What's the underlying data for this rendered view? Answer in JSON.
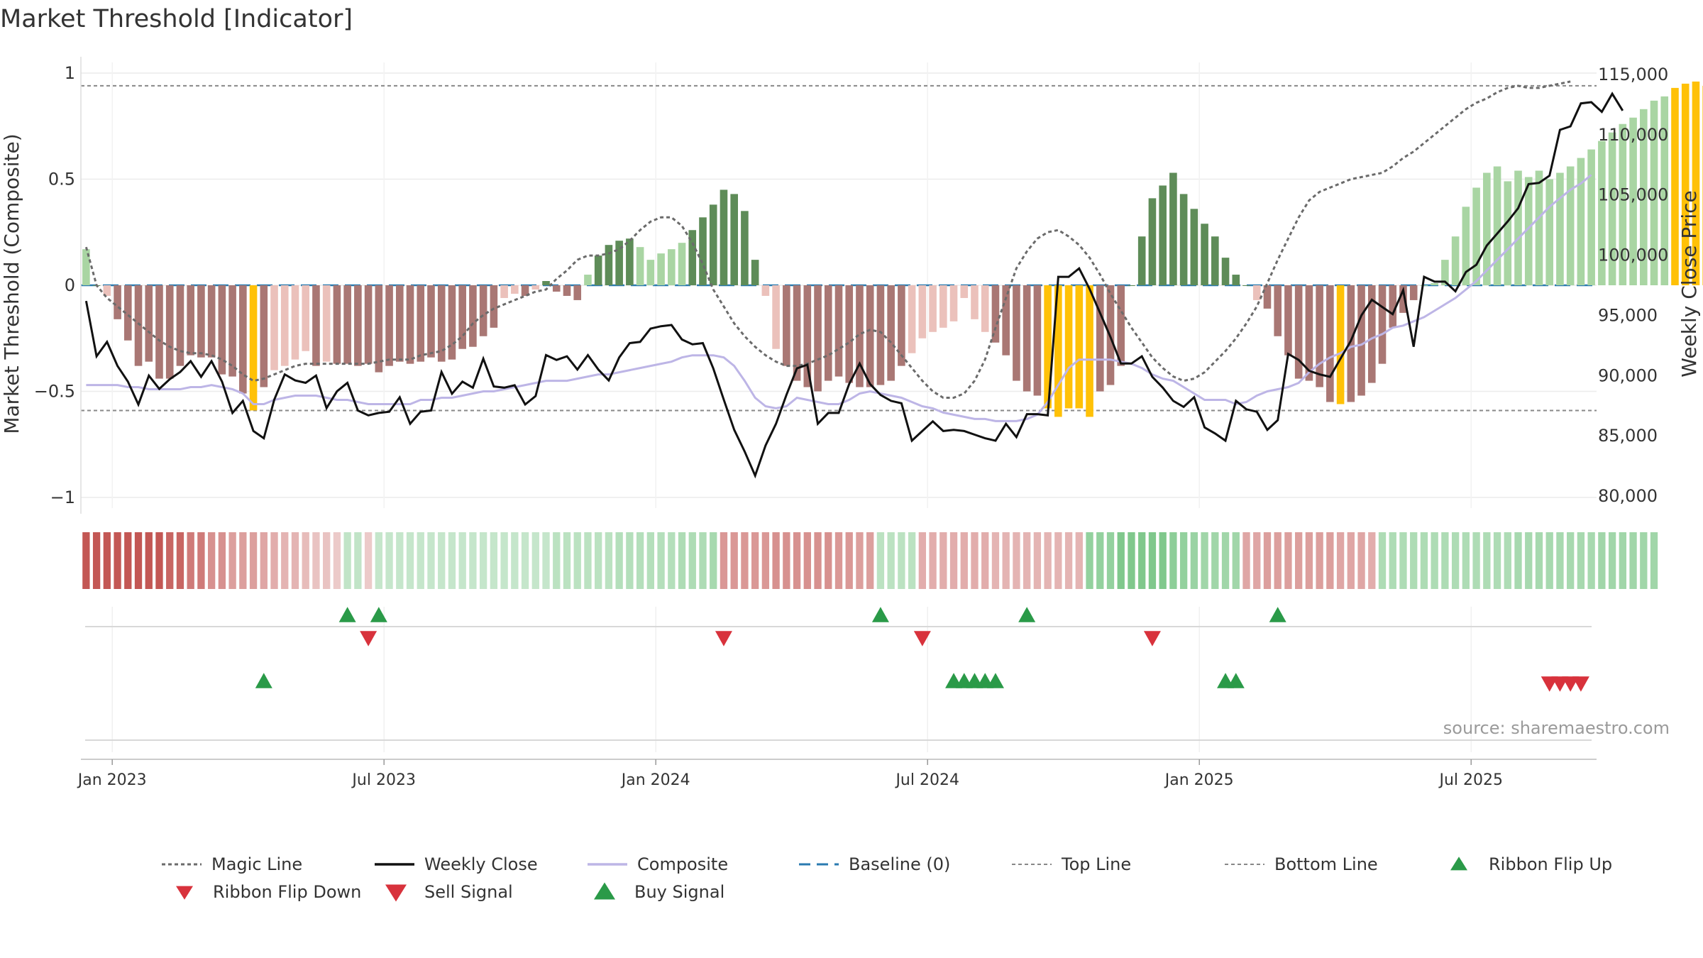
{
  "chart_data": {
    "type": "bar",
    "title": "Market Threshold [Indicator]",
    "ylabel_left": "Market Threshold (Composite)",
    "ylabel_right": "Weekly Close Price",
    "ylim_left": [
      -1.05,
      1.05
    ],
    "ylim_right": [
      79000,
      116000
    ],
    "left_ticks": [
      {
        "value": 1,
        "label": "1"
      },
      {
        "value": 0.5,
        "label": "0.5"
      },
      {
        "value": 0,
        "label": "0"
      },
      {
        "value": -0.5,
        "label": "−0.5"
      },
      {
        "value": -1,
        "label": "−1"
      }
    ],
    "right_ticks": [
      {
        "value": 115000,
        "label": "115,000"
      },
      {
        "value": 110000,
        "label": "110,000"
      },
      {
        "value": 105000,
        "label": "105,000"
      },
      {
        "value": 100000,
        "label": "100,000"
      },
      {
        "value": 95000,
        "label": "95,000"
      },
      {
        "value": 90000,
        "label": "90,000"
      },
      {
        "value": 85000,
        "label": "85,000"
      },
      {
        "value": 80000,
        "label": "80,000"
      }
    ],
    "x_ticks": [
      {
        "week": 2.5,
        "label": "Jan 2023"
      },
      {
        "week": 28.5,
        "label": "Jul 2023"
      },
      {
        "week": 54.5,
        "label": "Jan 2024"
      },
      {
        "week": 80.5,
        "label": "Jul 2024"
      },
      {
        "week": 106.5,
        "label": "Jan 2025"
      },
      {
        "week": 132.5,
        "label": "Jul 2025"
      }
    ],
    "weeks": 145,
    "top_line": 0.94,
    "bottom_line": -0.59,
    "composite_bars": [
      0.17,
      0.0,
      -0.05,
      -0.16,
      -0.26,
      -0.38,
      -0.36,
      -0.44,
      -0.44,
      -0.38,
      -0.33,
      -0.34,
      -0.34,
      -0.42,
      -0.43,
      -0.51,
      -0.59,
      -0.48,
      -0.4,
      -0.38,
      -0.35,
      -0.31,
      -0.38,
      -0.36,
      -0.37,
      -0.37,
      -0.38,
      -0.37,
      -0.41,
      -0.38,
      -0.36,
      -0.37,
      -0.36,
      -0.34,
      -0.36,
      -0.35,
      -0.3,
      -0.29,
      -0.24,
      -0.2,
      -0.06,
      -0.04,
      -0.05,
      -0.02,
      0.02,
      -0.03,
      -0.05,
      -0.07,
      0.05,
      0.14,
      0.19,
      0.21,
      0.22,
      0.18,
      0.12,
      0.15,
      0.17,
      0.2,
      0.26,
      0.32,
      0.38,
      0.45,
      0.43,
      0.35,
      0.12,
      -0.05,
      -0.3,
      -0.38,
      -0.45,
      -0.48,
      -0.5,
      -0.45,
      -0.43,
      -0.46,
      -0.48,
      -0.48,
      -0.47,
      -0.45,
      -0.38,
      -0.32,
      -0.25,
      -0.22,
      -0.2,
      -0.17,
      -0.06,
      -0.16,
      -0.22,
      -0.27,
      -0.33,
      -0.45,
      -0.5,
      -0.52,
      -0.58,
      -0.62,
      -0.58,
      -0.58,
      -0.62,
      -0.5,
      -0.47,
      -0.38,
      0.0,
      0.23,
      0.41,
      0.47,
      0.53,
      0.43,
      0.36,
      0.29,
      0.23,
      0.13,
      0.05,
      0.0,
      -0.07,
      -0.11,
      -0.24,
      -0.33,
      -0.44,
      -0.45,
      -0.48,
      -0.55,
      -0.56,
      -0.55,
      -0.52,
      -0.46,
      -0.37,
      -0.2,
      -0.13,
      -0.07,
      0.0,
      0.01,
      0.12,
      0.23,
      0.37,
      0.46,
      0.53,
      0.56,
      0.49,
      0.54,
      0.51,
      0.54,
      0.5,
      0.53,
      0.56,
      0.6,
      0.64,
      0.68,
      0.72,
      0.76,
      0.79,
      0.83,
      0.87,
      0.89,
      0.93,
      0.95,
      0.96,
      0.94,
      0.89
    ],
    "magic_line": [
      0.18,
      0.0,
      -0.06,
      -0.1,
      -0.14,
      -0.18,
      -0.22,
      -0.26,
      -0.29,
      -0.31,
      -0.32,
      -0.32,
      -0.33,
      -0.35,
      -0.38,
      -0.42,
      -0.45,
      -0.44,
      -0.42,
      -0.4,
      -0.38,
      -0.37,
      -0.37,
      -0.37,
      -0.37,
      -0.37,
      -0.37,
      -0.37,
      -0.36,
      -0.35,
      -0.35,
      -0.35,
      -0.33,
      -0.32,
      -0.31,
      -0.28,
      -0.24,
      -0.18,
      -0.14,
      -0.11,
      -0.09,
      -0.07,
      -0.05,
      -0.03,
      -0.02,
      0.03,
      0.07,
      0.12,
      0.14,
      0.14,
      0.15,
      0.17,
      0.21,
      0.26,
      0.3,
      0.32,
      0.32,
      0.28,
      0.2,
      0.1,
      -0.02,
      -0.1,
      -0.18,
      -0.24,
      -0.29,
      -0.33,
      -0.36,
      -0.38,
      -0.38,
      -0.37,
      -0.35,
      -0.33,
      -0.3,
      -0.27,
      -0.23,
      -0.21,
      -0.22,
      -0.27,
      -0.33,
      -0.39,
      -0.45,
      -0.5,
      -0.53,
      -0.53,
      -0.51,
      -0.45,
      -0.35,
      -0.2,
      -0.06,
      0.08,
      0.16,
      0.22,
      0.25,
      0.26,
      0.23,
      0.19,
      0.13,
      0.05,
      -0.04,
      -0.12,
      -0.2,
      -0.27,
      -0.34,
      -0.39,
      -0.43,
      -0.45,
      -0.44,
      -0.41,
      -0.36,
      -0.31,
      -0.25,
      -0.18,
      -0.1,
      0.01,
      0.12,
      0.22,
      0.32,
      0.4,
      0.44,
      0.46,
      0.48,
      0.5,
      0.51,
      0.52,
      0.53,
      0.56,
      0.6,
      0.63,
      0.67,
      0.71,
      0.75,
      0.79,
      0.83,
      0.86,
      0.88,
      0.91,
      0.93,
      0.94,
      0.93,
      0.93,
      0.94,
      0.95,
      0.96
    ],
    "composite_line": [
      -0.47,
      -0.47,
      -0.47,
      -0.47,
      -0.48,
      -0.48,
      -0.49,
      -0.49,
      -0.49,
      -0.49,
      -0.48,
      -0.48,
      -0.47,
      -0.48,
      -0.49,
      -0.51,
      -0.56,
      -0.56,
      -0.54,
      -0.53,
      -0.52,
      -0.52,
      -0.52,
      -0.53,
      -0.54,
      -0.54,
      -0.55,
      -0.56,
      -0.56,
      -0.56,
      -0.56,
      -0.56,
      -0.54,
      -0.54,
      -0.53,
      -0.53,
      -0.52,
      -0.51,
      -0.5,
      -0.5,
      -0.49,
      -0.48,
      -0.47,
      -0.46,
      -0.45,
      -0.45,
      -0.45,
      -0.44,
      -0.43,
      -0.42,
      -0.42,
      -0.41,
      -0.4,
      -0.39,
      -0.38,
      -0.37,
      -0.36,
      -0.34,
      -0.33,
      -0.33,
      -0.33,
      -0.34,
      -0.38,
      -0.45,
      -0.53,
      -0.57,
      -0.58,
      -0.57,
      -0.53,
      -0.54,
      -0.55,
      -0.56,
      -0.56,
      -0.54,
      -0.51,
      -0.5,
      -0.51,
      -0.52,
      -0.53,
      -0.55,
      -0.57,
      -0.58,
      -0.6,
      -0.61,
      -0.62,
      -0.63,
      -0.63,
      -0.64,
      -0.64,
      -0.64,
      -0.63,
      -0.61,
      -0.55,
      -0.47,
      -0.39,
      -0.35,
      -0.35,
      -0.35,
      -0.35,
      -0.36,
      -0.37,
      -0.39,
      -0.42,
      -0.44,
      -0.45,
      -0.48,
      -0.51,
      -0.54,
      -0.54,
      -0.54,
      -0.56,
      -0.55,
      -0.52,
      -0.5,
      -0.49,
      -0.48,
      -0.46,
      -0.41,
      -0.37,
      -0.34,
      -0.32,
      -0.29,
      -0.28,
      -0.25,
      -0.23,
      -0.2,
      -0.19,
      -0.17,
      -0.15,
      -0.12,
      -0.09,
      -0.06,
      -0.02,
      0.02,
      0.07,
      0.12,
      0.17,
      0.22,
      0.27,
      0.32,
      0.37,
      0.41,
      0.45,
      0.48,
      0.52
    ],
    "weekly_close": [
      96200,
      91600,
      92800,
      90800,
      89500,
      87600,
      90000,
      88900,
      89700,
      90300,
      91200,
      89900,
      91200,
      89500,
      86900,
      87900,
      85400,
      84800,
      88000,
      90100,
      89600,
      89400,
      90000,
      87300,
      88700,
      89400,
      87100,
      86700,
      86900,
      87000,
      88200,
      86000,
      87000,
      87100,
      90300,
      88500,
      89500,
      89000,
      91400,
      89100,
      89000,
      89200,
      87600,
      88300,
      91700,
      91300,
      91600,
      90500,
      91700,
      90500,
      89600,
      91500,
      92700,
      92800,
      93900,
      94100,
      94200,
      93000,
      92600,
      92700,
      90600,
      88000,
      85500,
      83700,
      81700,
      84200,
      86000,
      88400,
      90600,
      90900,
      86000,
      86900,
      86900,
      89300,
      91000,
      89300,
      88400,
      87900,
      87700,
      84600,
      85400,
      86200,
      85400,
      85500,
      85400,
      85100,
      84800,
      84600,
      86000,
      84900,
      86800,
      86800,
      86700,
      98200,
      98200,
      98900,
      97200,
      95200,
      93200,
      91000,
      91000,
      91600,
      89900,
      89000,
      87900,
      87400,
      88200,
      85700,
      85200,
      84600,
      87900,
      87200,
      87000,
      85500,
      86300,
      91800,
      91300,
      90400,
      90100,
      89900,
      91400,
      92900,
      95000,
      96300,
      95700,
      95100,
      97100,
      92400,
      98200,
      97800,
      97800,
      97000,
      98600,
      99200,
      100800,
      101800,
      102800,
      103900,
      105900,
      106000,
      106600,
      110400,
      110700,
      112600,
      112700,
      111900,
      113400,
      112000
    ],
    "ribbon": [
      -0.95,
      -0.95,
      -0.95,
      -0.95,
      -0.95,
      -0.95,
      -0.95,
      -0.95,
      -0.85,
      -0.85,
      -0.7,
      -0.7,
      -0.55,
      -0.55,
      -0.45,
      -0.45,
      -0.45,
      -0.4,
      -0.35,
      -0.3,
      -0.3,
      -0.25,
      -0.2,
      -0.2,
      -0.15,
      0.25,
      0.25,
      -0.15,
      0.22,
      0.22,
      0.22,
      0.22,
      0.22,
      0.22,
      0.22,
      0.22,
      0.22,
      0.22,
      0.22,
      0.22,
      0.22,
      0.22,
      0.22,
      0.22,
      0.22,
      0.3,
      0.3,
      0.3,
      0.3,
      0.3,
      0.3,
      0.35,
      0.35,
      0.35,
      0.35,
      0.35,
      0.35,
      0.4,
      0.4,
      0.4,
      0.45,
      -0.5,
      -0.5,
      -0.5,
      -0.5,
      -0.5,
      -0.55,
      -0.55,
      -0.55,
      -0.55,
      -0.55,
      -0.55,
      -0.5,
      -0.5,
      -0.45,
      -0.45,
      0.3,
      0.3,
      0.3,
      0.3,
      -0.35,
      -0.35,
      -0.35,
      -0.35,
      -0.35,
      -0.35,
      -0.35,
      -0.3,
      -0.3,
      -0.3,
      -0.3,
      -0.3,
      -0.3,
      -0.3,
      -0.3,
      -0.3,
      0.6,
      0.6,
      0.6,
      0.75,
      0.75,
      0.75,
      0.75,
      0.75,
      0.65,
      0.6,
      0.55,
      0.5,
      0.5,
      0.5,
      0.5,
      -0.4,
      -0.4,
      -0.45,
      -0.45,
      -0.45,
      -0.45,
      -0.45,
      -0.45,
      -0.45,
      -0.4,
      -0.4,
      -0.4,
      -0.35,
      0.4,
      0.4,
      0.4,
      0.4,
      0.4,
      0.4,
      0.4,
      0.4,
      0.4,
      0.4,
      0.4,
      0.4,
      0.4,
      0.45,
      0.45,
      0.45,
      0.45,
      0.45,
      0.45,
      0.45,
      0.45,
      0.5,
      0.5,
      0.5,
      0.5,
      0.5,
      0.5
    ],
    "ribbon_flip_up_weeks": [
      25,
      28,
      76,
      90,
      114
    ],
    "ribbon_flip_down_weeks": [
      27,
      61,
      80,
      102
    ],
    "buy_signal_weeks": [
      17,
      83,
      84,
      85,
      86,
      87,
      109,
      110
    ],
    "sell_signal_weeks": [
      140,
      141,
      142,
      143
    ],
    "legend": [
      {
        "key": "magic",
        "label": "Magic Line"
      },
      {
        "key": "close",
        "label": "Weekly Close"
      },
      {
        "key": "composite",
        "label": "Composite"
      },
      {
        "key": "baseline",
        "label": "Baseline (0)"
      },
      {
        "key": "top",
        "label": "Top Line"
      },
      {
        "key": "bottom",
        "label": "Bottom Line"
      },
      {
        "key": "flipup",
        "label": "Ribbon Flip Up"
      },
      {
        "key": "flipdown",
        "label": "Ribbon Flip Down"
      },
      {
        "key": "sell",
        "label": "Sell Signal"
      },
      {
        "key": "buy",
        "label": "Buy Signal"
      }
    ],
    "source": "source: sharemaestro.com"
  },
  "colors": {
    "pos_dark": "#5e8c58",
    "pos_light": "#a9d5a3",
    "neg_dark": "#a97774",
    "neg_light": "#ebc1bb",
    "extreme": "#ffc107",
    "close_line": "#111111",
    "composite_line": "#bdb5e6",
    "magic_line": "#6b6b6b",
    "baseline": "#2a7ab0",
    "ref_line": "#888888",
    "up_marker": "#2a9a48",
    "down_marker": "#d8323c",
    "ribbon_green": "#5fba6e",
    "ribbon_red": "#c0504d"
  }
}
